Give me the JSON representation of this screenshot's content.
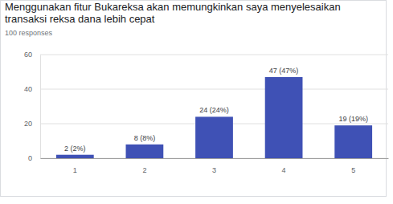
{
  "chart_data": {
    "type": "bar",
    "title": "Menggunakan fitur Bukareksa akan memungkinkan saya menyelesaikan transaksi reksa dana lebih cepat",
    "subtitle": "100 responses",
    "categories": [
      "1",
      "2",
      "3",
      "4",
      "5"
    ],
    "values": [
      2,
      8,
      24,
      47,
      19
    ],
    "value_labels": [
      "2 (2%)",
      "8 (8%)",
      "24 (24%)",
      "47 (47%)",
      "19 (19%)"
    ],
    "data_labels": true,
    "color": "#3f51b5",
    "ylim": [
      0,
      60
    ],
    "yticks": [
      0,
      20,
      40,
      60
    ],
    "grid": true
  }
}
